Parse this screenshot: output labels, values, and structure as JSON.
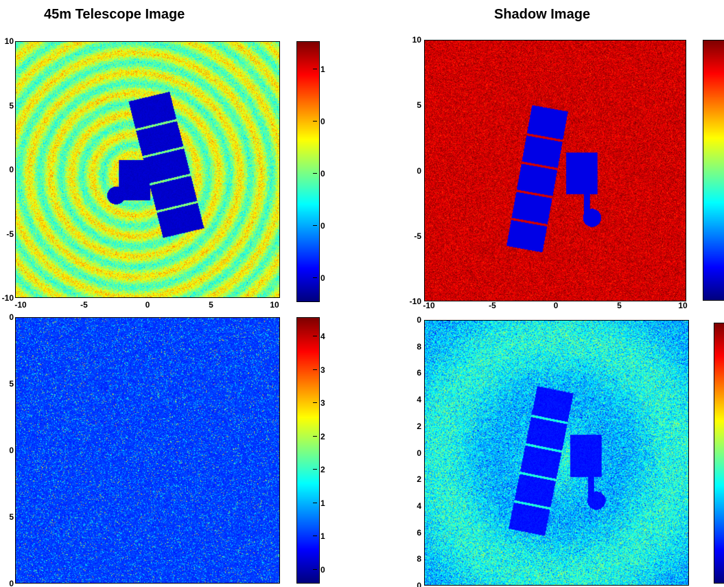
{
  "titles": {
    "left": "45m Telescope Image",
    "right": "Shadow Image"
  },
  "chart_data": [
    {
      "type": "heatmap",
      "panel": "top-left",
      "title": "45m Telescope Image",
      "content": "satellite with concentric diffraction rings",
      "colormap": "jet",
      "xlim": [
        -10,
        10
      ],
      "ylim": [
        -10,
        10
      ],
      "x_tick_labels": [
        "-10",
        "-5",
        "0",
        "5",
        "10"
      ],
      "y_tick_labels": [
        "10",
        "5",
        "0",
        "-5",
        "-10"
      ],
      "colorbar_tick_labels": [
        "1",
        "0",
        "0",
        "0",
        "0"
      ]
    },
    {
      "type": "heatmap",
      "panel": "top-right",
      "title": "Shadow Image",
      "content": "satellite silhouette on uniform background",
      "colormap": "jet",
      "xlim": [
        -10,
        10
      ],
      "ylim": [
        -10,
        10
      ],
      "x_tick_labels": [
        "-10",
        "-5",
        "0",
        "5",
        "10"
      ],
      "y_tick_labels": [
        "10",
        "5",
        "0",
        "-5",
        "-10"
      ],
      "colorbar_tick_labels": []
    },
    {
      "type": "heatmap",
      "panel": "bottom-left",
      "content": "noise field",
      "colormap": "jet",
      "y_tick_labels": [
        "0",
        "5",
        "0",
        "5",
        "0"
      ],
      "colorbar_tick_labels": [
        "4",
        "3",
        "3",
        "2",
        "2",
        "1",
        "1",
        "0"
      ]
    },
    {
      "type": "heatmap",
      "panel": "bottom-right",
      "content": "noisy satellite shadow with faint rings",
      "colormap": "jet",
      "y_tick_labels": [
        "0",
        "8",
        "6",
        "4",
        "2",
        "0",
        "2",
        "4",
        "6",
        "8",
        "0"
      ],
      "colorbar_tick_labels": []
    }
  ]
}
